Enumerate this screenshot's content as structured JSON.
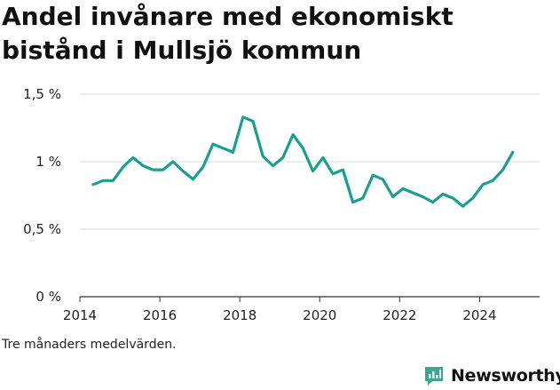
{
  "colors": {
    "line": "#1a9e8f",
    "grid": "#d9d9d9",
    "brand": "#3aa794"
  },
  "chart_data": {
    "type": "line",
    "title": "Andel invånare med ekonomiskt bistånd i Mullsjö kommun",
    "caption": "Tre månaders medelvärden.",
    "xlabel": "",
    "ylabel": "",
    "xlim": [
      2014,
      2025.5
    ],
    "ylim": [
      0,
      1.5
    ],
    "x_ticks": [
      2014,
      2016,
      2018,
      2020,
      2022,
      2024
    ],
    "y_ticks": [
      0,
      0.5,
      1,
      1.5
    ],
    "x_tick_labels": [
      "2014",
      "2016",
      "2018",
      "2020",
      "2022",
      "2024"
    ],
    "y_tick_labels": [
      "0 %",
      "0,5 %",
      "1 %",
      "1,5 %"
    ],
    "grid": "horizontal",
    "series": [
      {
        "x": [
          2014.33,
          2014.58,
          2014.83,
          2015.08,
          2015.33,
          2015.58,
          2015.83,
          2016.08,
          2016.33,
          2016.58,
          2016.83,
          2017.08,
          2017.33,
          2017.58,
          2017.83,
          2018.08,
          2018.33,
          2018.58,
          2018.83,
          2019.08,
          2019.33,
          2019.58,
          2019.83,
          2020.08,
          2020.33,
          2020.58,
          2020.83,
          2021.08,
          2021.33,
          2021.58,
          2021.83,
          2022.08,
          2022.33,
          2022.58,
          2022.83,
          2023.08,
          2023.33,
          2023.58,
          2023.83,
          2024.08,
          2024.33,
          2024.58,
          2024.83
        ],
        "y": [
          0.83,
          0.86,
          0.86,
          0.96,
          1.03,
          0.97,
          0.94,
          0.94,
          1.0,
          0.93,
          0.87,
          0.96,
          1.13,
          1.1,
          1.07,
          1.33,
          1.3,
          1.04,
          0.97,
          1.03,
          1.2,
          1.1,
          0.93,
          1.03,
          0.91,
          0.94,
          0.7,
          0.73,
          0.9,
          0.87,
          0.74,
          0.8,
          0.77,
          0.74,
          0.7,
          0.76,
          0.73,
          0.67,
          0.73,
          0.83,
          0.86,
          0.94,
          1.07
        ]
      }
    ]
  },
  "brand": {
    "name": "Newsworthy"
  }
}
